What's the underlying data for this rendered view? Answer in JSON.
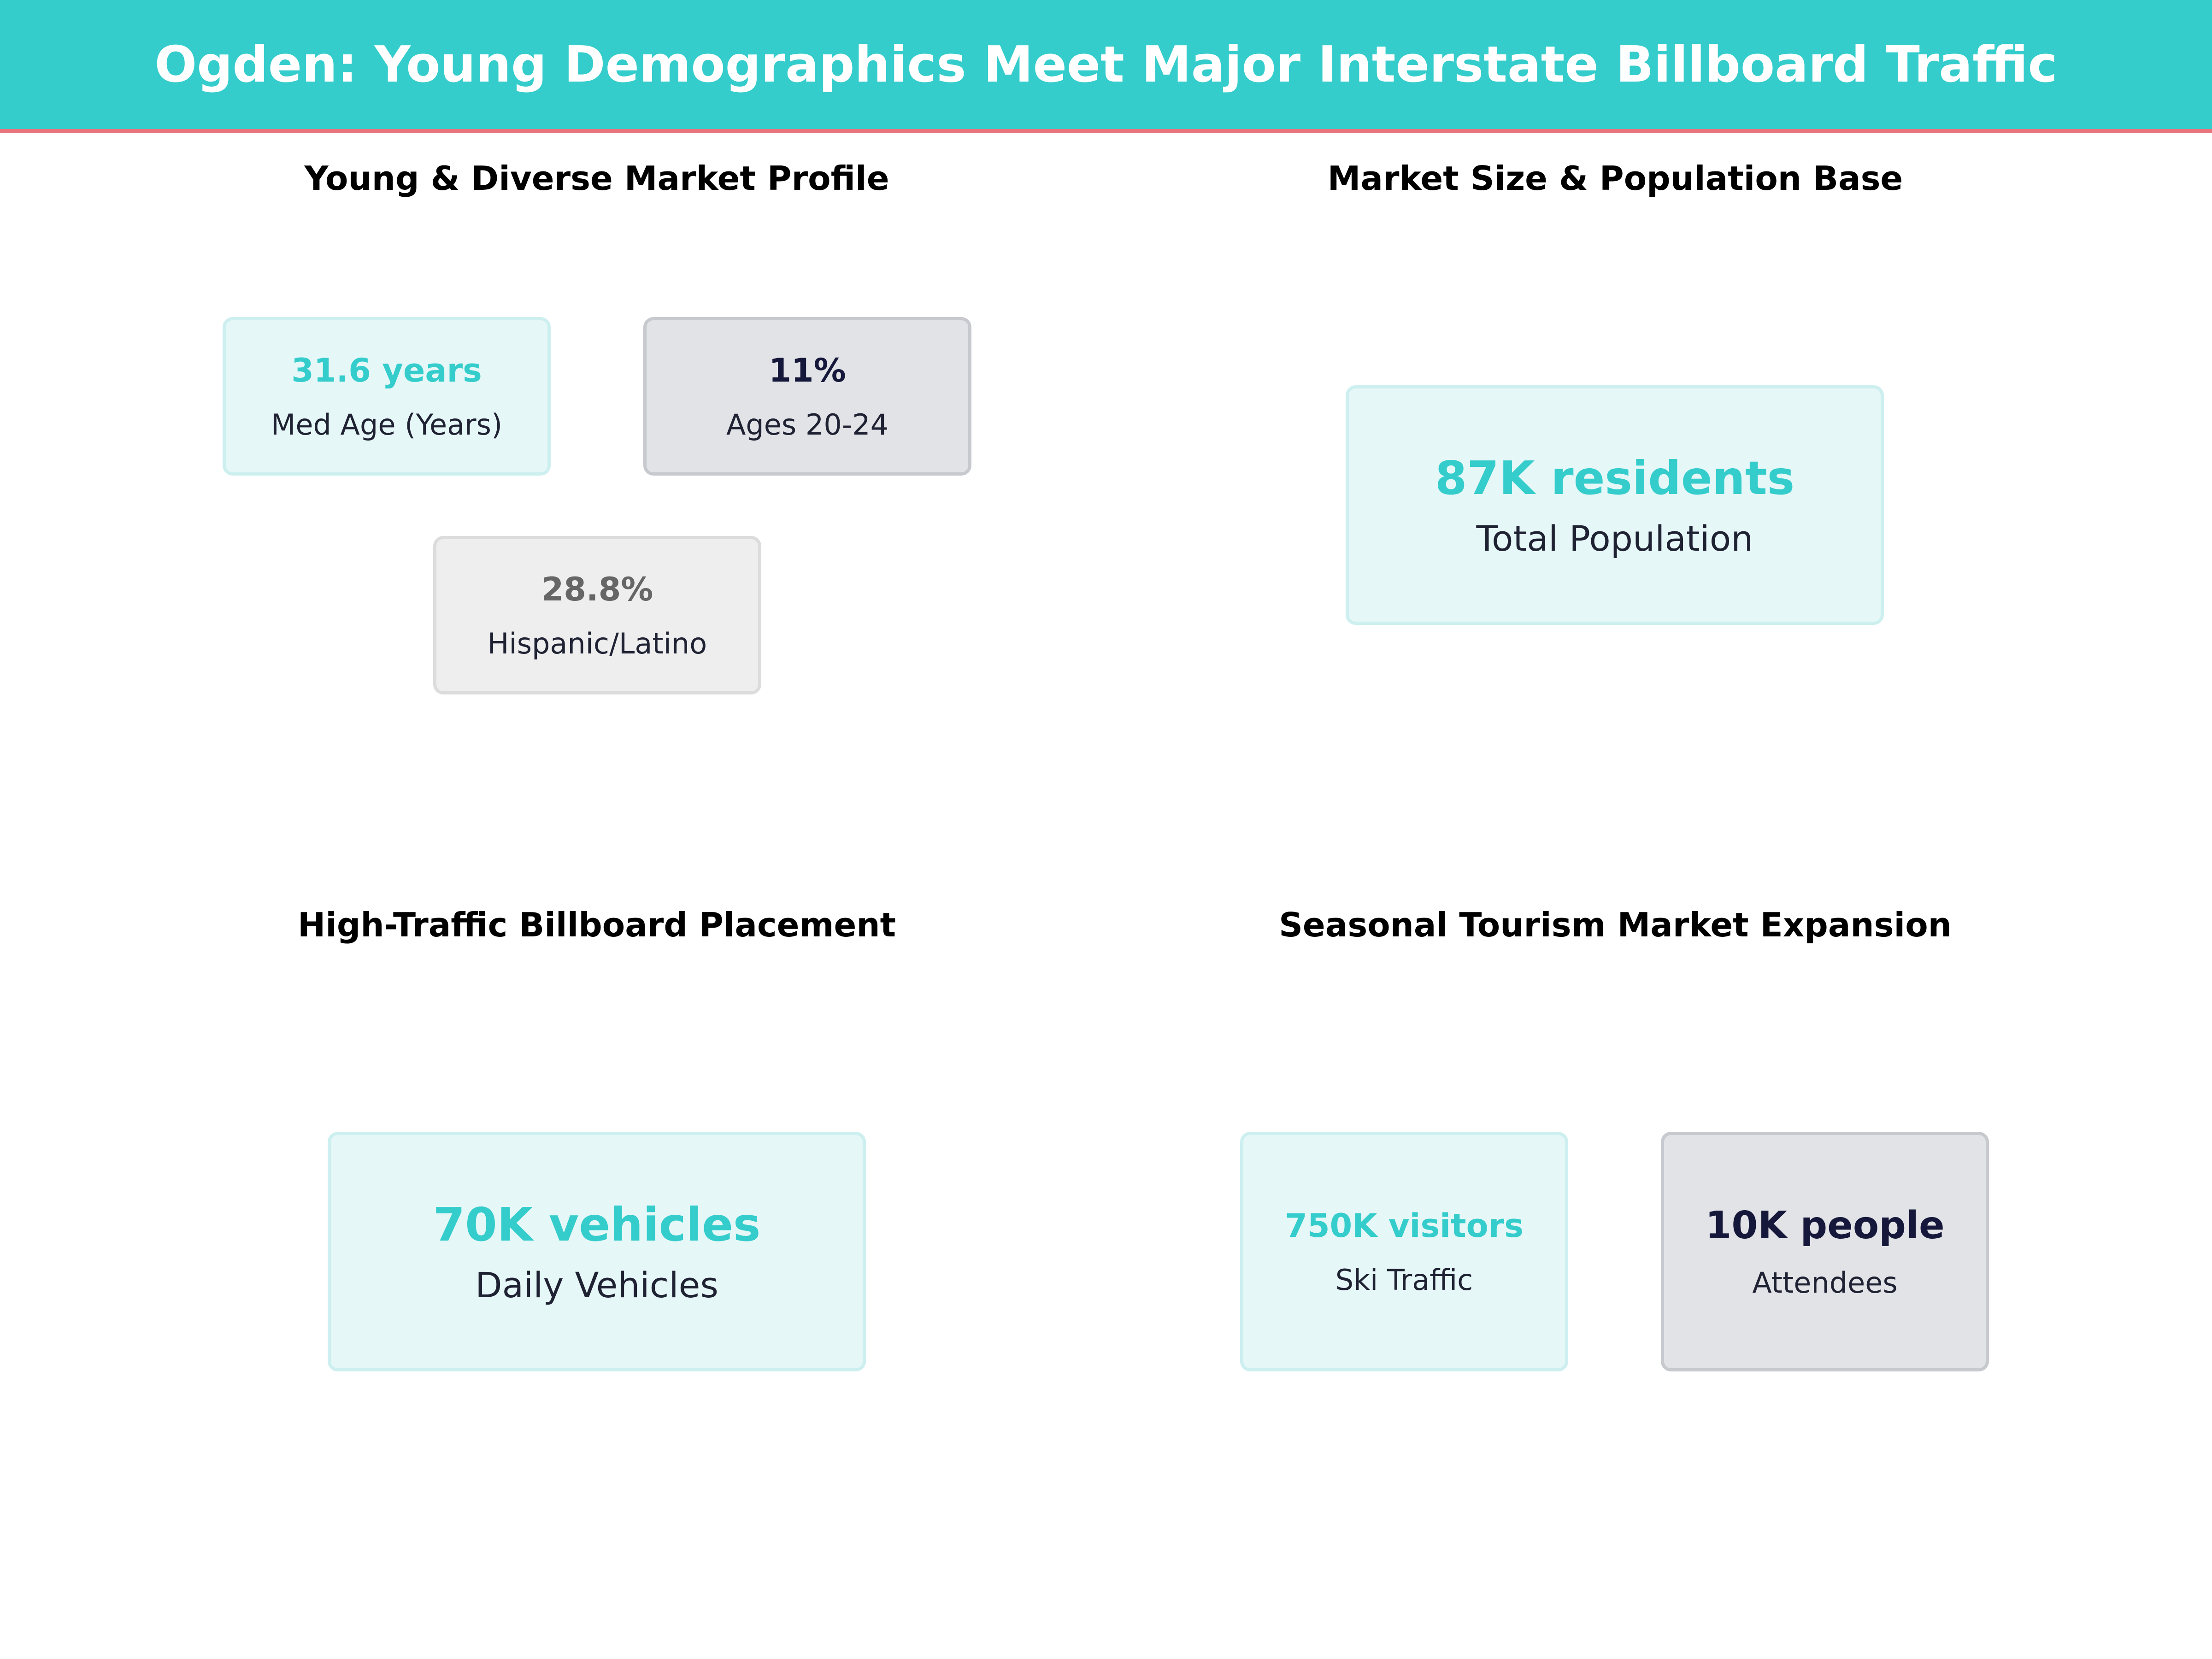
{
  "header": {
    "title": "Ogden: Young Demographics Meet Major Interstate Billboard Traffic"
  },
  "panels": {
    "demographics": {
      "title": "Young & Diverse Market Profile",
      "cards": [
        {
          "value": "31.6 years",
          "label": "Med Age (Years)"
        },
        {
          "value": "11%",
          "label": "Ages 20-24"
        },
        {
          "value": "28.8%",
          "label": "Hispanic/Latino"
        }
      ]
    },
    "market_size": {
      "title": "Market Size & Population Base",
      "cards": [
        {
          "value": "87K residents",
          "label": "Total Population"
        }
      ]
    },
    "billboard": {
      "title": "High-Traffic Billboard Placement",
      "cards": [
        {
          "value": "70K vehicles",
          "label": "Daily Vehicles"
        }
      ]
    },
    "tourism": {
      "title": "Seasonal Tourism Market Expansion",
      "cards": [
        {
          "value": "750K visitors",
          "label": "Ski Traffic"
        },
        {
          "value": "10K people",
          "label": "Attendees"
        }
      ]
    }
  },
  "colors": {
    "accent": "#35CCCC",
    "header_rule": "#E8737B",
    "navy": "#15183A",
    "gray": "#666666"
  }
}
